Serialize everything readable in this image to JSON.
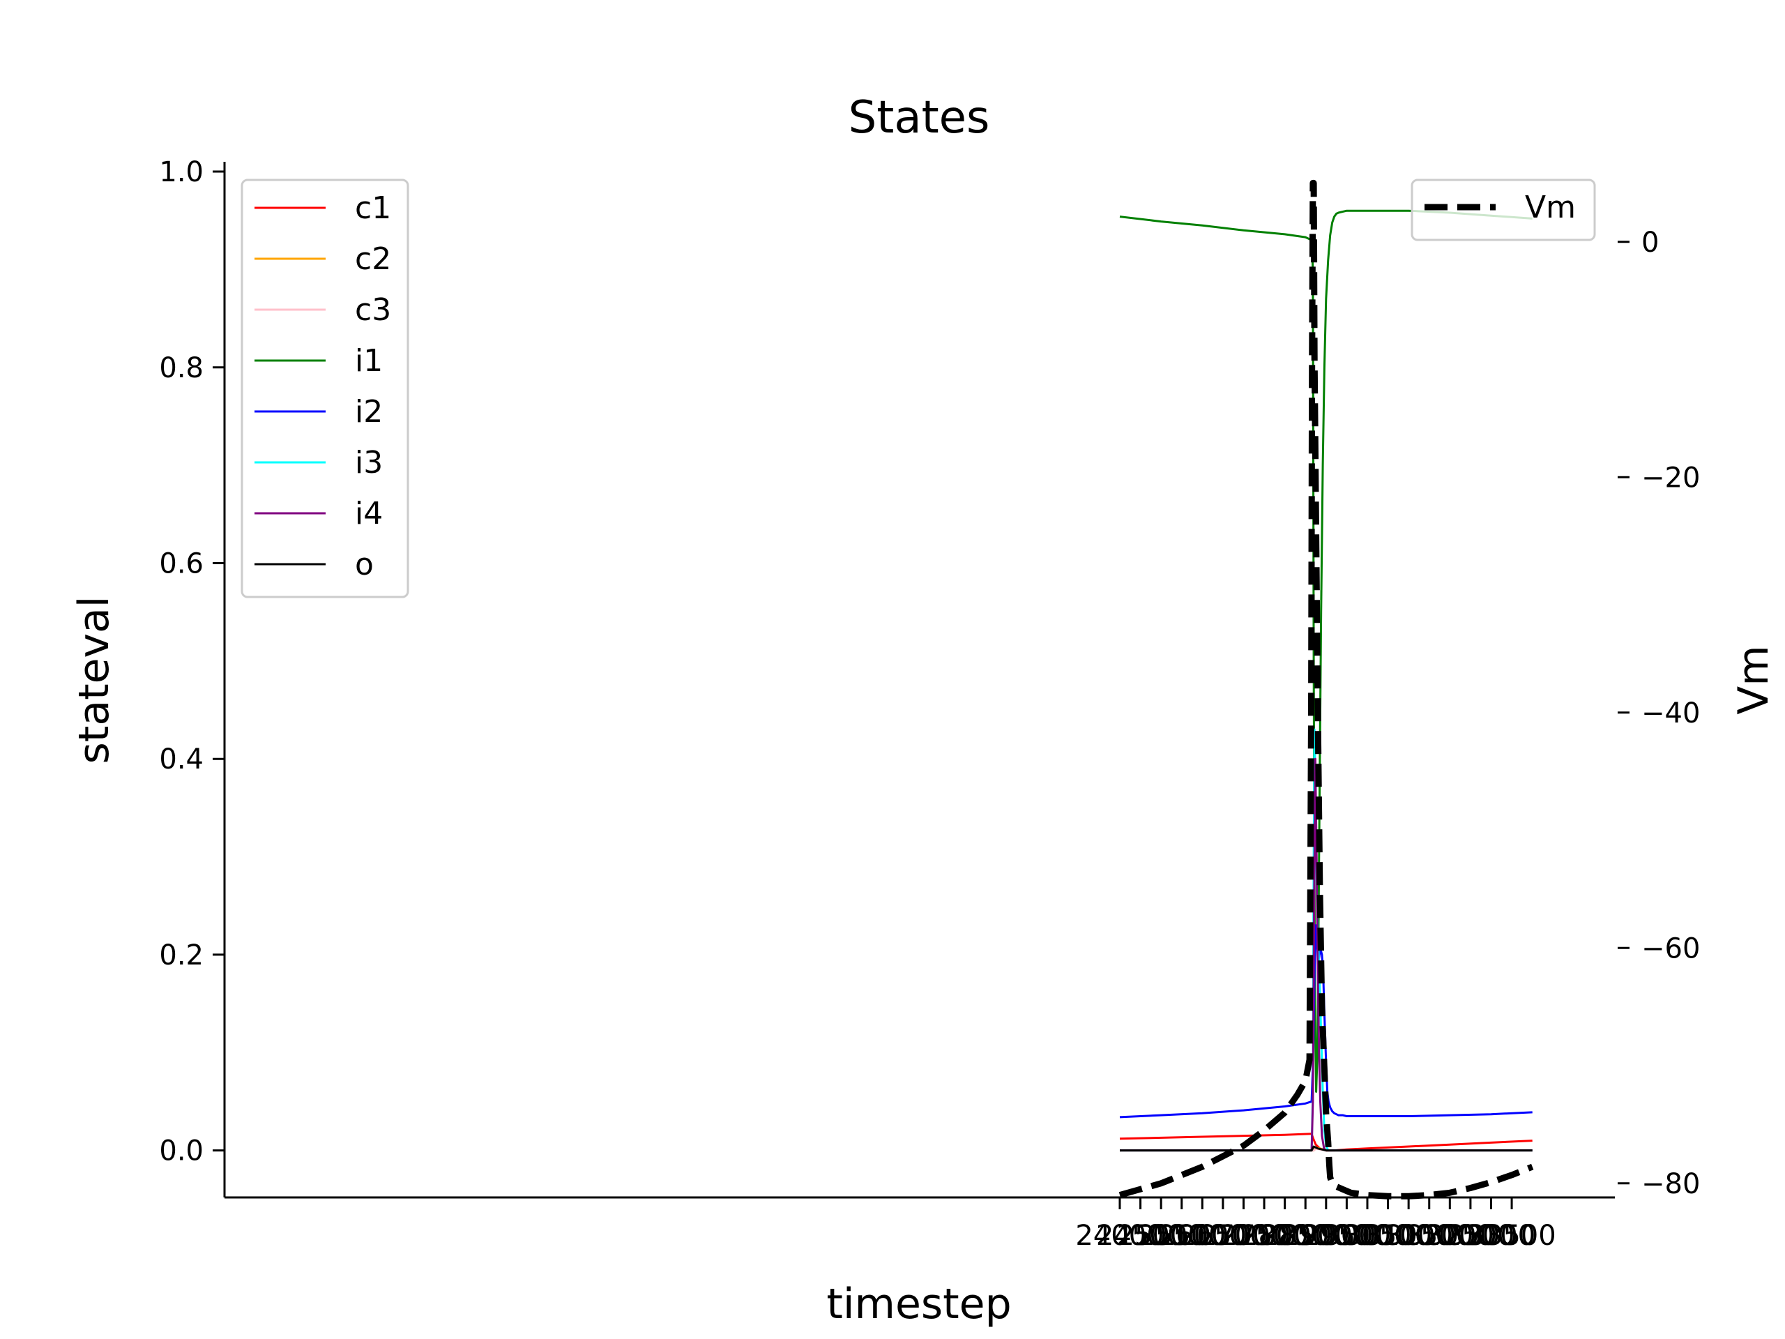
{
  "chart_data": {
    "type": "line",
    "title": "States",
    "xlabel": "timestep",
    "ylabel": "stateval",
    "y2label": "Vm",
    "xlim": [
      2300,
      36000
    ],
    "ylim": [
      -0.048,
      1.01
    ],
    "y2lim": [
      -81.2,
      6.8
    ],
    "x_ticks": [
      24000,
      24500,
      25000,
      25500,
      26000,
      26500,
      27000,
      27500,
      28000,
      28500,
      29000,
      29500,
      30000,
      30500,
      31000,
      31500,
      32000,
      32500,
      33000,
      33500
    ],
    "x_tick_labels": [
      "24000",
      "24500",
      "25000",
      "25500",
      "26000",
      "26500",
      "27000",
      "27500",
      "28000",
      "28500",
      "29000",
      "29500",
      "30000",
      "30500",
      "31000",
      "31500",
      "32000",
      "32500",
      "33000",
      "33500"
    ],
    "y_ticks": [
      0.0,
      0.2,
      0.4,
      0.6,
      0.8,
      1.0
    ],
    "y_tick_labels": [
      "0.0",
      "0.2",
      "0.4",
      "0.6",
      "0.8",
      "1.0"
    ],
    "y2_ticks": [
      0,
      -20,
      -40,
      -60,
      -80
    ],
    "y2_tick_labels": [
      "0",
      "−20",
      "−40",
      "−60",
      "−80"
    ],
    "legend_left": "top-left",
    "legend_right": "top-right",
    "grid": false,
    "series": [
      {
        "name": "c1",
        "color": "#ff0000",
        "axis": "left",
        "x": [
          24000,
          26000,
          28000,
          28650,
          28690,
          28750,
          28850,
          29000,
          29200,
          29500,
          30000,
          31000,
          32000,
          33000,
          34000
        ],
        "y": [
          0.012,
          0.014,
          0.016,
          0.017,
          0.012,
          0.006,
          0.002,
          0.0,
          0.0,
          0.001,
          0.002,
          0.004,
          0.006,
          0.008,
          0.01
        ]
      },
      {
        "name": "c2",
        "color": "#ffa500",
        "axis": "left",
        "x": [
          24000,
          28000,
          28700,
          28750,
          28850,
          29000,
          30000,
          34000
        ],
        "y": [
          0.0,
          0.0,
          0.0,
          0.003,
          0.002,
          0.0,
          0.0,
          0.0
        ]
      },
      {
        "name": "c3",
        "color": "#ffc0cb",
        "axis": "left",
        "x": [
          24000,
          28700,
          28760,
          28850,
          29000,
          34000
        ],
        "y": [
          0.0,
          0.0,
          0.002,
          0.001,
          0.0,
          0.0
        ]
      },
      {
        "name": "i1",
        "color": "#008000",
        "axis": "left",
        "x": [
          24000,
          25000,
          26000,
          27000,
          28000,
          28500,
          28650,
          28680,
          28700,
          28730,
          28760,
          28790,
          28820,
          28850,
          28880,
          28920,
          28960,
          29000,
          29050,
          29100,
          29150,
          29200,
          29250,
          29300,
          29400,
          29500,
          30000,
          31000,
          32000,
          33000,
          34000
        ],
        "y": [
          0.954,
          0.949,
          0.945,
          0.94,
          0.936,
          0.933,
          0.93,
          0.9,
          0.5,
          0.15,
          0.06,
          0.1,
          0.25,
          0.4,
          0.55,
          0.7,
          0.8,
          0.87,
          0.91,
          0.935,
          0.948,
          0.954,
          0.957,
          0.958,
          0.959,
          0.96,
          0.96,
          0.96,
          0.958,
          0.955,
          0.952
        ]
      },
      {
        "name": "i2",
        "color": "#0000ff",
        "axis": "left",
        "x": [
          24000,
          25000,
          26000,
          27000,
          28000,
          28500,
          28650,
          28690,
          28720,
          28750,
          28780,
          28810,
          28840,
          28870,
          28900,
          28930,
          28960,
          29000,
          29030,
          29060,
          29100,
          29150,
          29200,
          29250,
          29300,
          29400,
          29500,
          30000,
          31000,
          32000,
          33000,
          34000
        ],
        "y": [
          0.034,
          0.036,
          0.038,
          0.041,
          0.045,
          0.048,
          0.05,
          0.1,
          0.18,
          0.23,
          0.21,
          0.19,
          0.2,
          0.205,
          0.2,
          0.18,
          0.14,
          0.09,
          0.06,
          0.05,
          0.044,
          0.04,
          0.038,
          0.037,
          0.036,
          0.036,
          0.035,
          0.035,
          0.035,
          0.036,
          0.037,
          0.039
        ]
      },
      {
        "name": "i3",
        "color": "#00ffff",
        "axis": "left",
        "x": [
          24000,
          28650,
          28680,
          28700,
          28720,
          28740,
          28760,
          28800,
          28840,
          28880,
          28920,
          28960,
          29000,
          29050,
          29100,
          34000
        ],
        "y": [
          0.0,
          0.0,
          0.06,
          0.3,
          0.43,
          0.38,
          0.3,
          0.22,
          0.18,
          0.12,
          0.06,
          0.02,
          0.005,
          0.0,
          0.0,
          0.0
        ]
      },
      {
        "name": "i4",
        "color": "#800080",
        "axis": "left",
        "x": [
          24000,
          28650,
          28680,
          28710,
          28740,
          28770,
          28800,
          28830,
          28860,
          28900,
          28950,
          29000,
          34000
        ],
        "y": [
          0.0,
          0.0,
          0.05,
          0.25,
          0.4,
          0.3,
          0.18,
          0.1,
          0.05,
          0.015,
          0.002,
          0.0,
          0.0
        ]
      },
      {
        "name": "o",
        "color": "#000000",
        "axis": "left",
        "x": [
          24000,
          28650,
          28700,
          28750,
          28800,
          28900,
          29000,
          34000
        ],
        "y": [
          0.0,
          0.0,
          0.004,
          0.003,
          0.002,
          0.001,
          0.0,
          0.0
        ]
      },
      {
        "name": "Vm",
        "color": "#000000",
        "axis": "right",
        "dashed": true,
        "x": [
          24000,
          25000,
          26000,
          27000,
          27500,
          28000,
          28300,
          28500,
          28600,
          28640,
          28660,
          28680,
          28700,
          28720,
          28760,
          28800,
          28850,
          28900,
          29000,
          29050,
          29080,
          29100,
          29150,
          29200,
          29400,
          29600,
          30000,
          30500,
          31000,
          31500,
          32000,
          32500,
          33000,
          33500,
          34000
        ],
        "y": [
          -81,
          -80,
          -78.6,
          -76.8,
          -75.5,
          -74,
          -72.5,
          -71.3,
          -69.5,
          -40,
          -10,
          5,
          5,
          -10,
          -25,
          -40,
          -55,
          -65,
          -74,
          -76.5,
          -78.5,
          -79.5,
          -80,
          -80.2,
          -80.5,
          -80.8,
          -81,
          -81.1,
          -81.1,
          -81,
          -80.8,
          -80.4,
          -79.9,
          -79.3,
          -78.6
        ]
      }
    ]
  }
}
